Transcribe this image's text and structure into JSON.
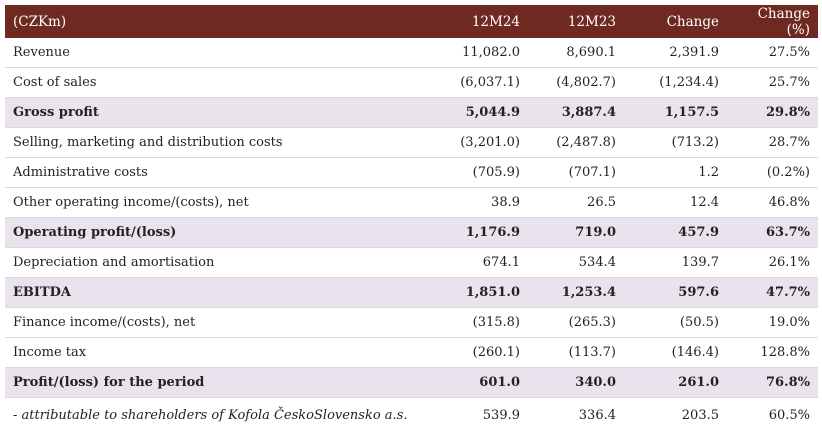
{
  "header": {
    "unit": "(CZKm)",
    "col1": "12M24",
    "col2": "12M23",
    "col3": "Change",
    "col4": "Change (%)"
  },
  "rows": [
    {
      "label": "Revenue",
      "m24": "11,082.0",
      "m23": "8,690.1",
      "change": "2,391.9",
      "pct": "27.5%",
      "bold": false
    },
    {
      "label": "Cost of sales",
      "m24": "(6,037.1)",
      "m23": "(4,802.7)",
      "change": "(1,234.4)",
      "pct": "25.7%",
      "bold": false
    },
    {
      "label": "Gross profit",
      "m24": "5,044.9",
      "m23": "3,887.4",
      "change": "1,157.5",
      "pct": "29.8%",
      "bold": true
    },
    {
      "label": "Selling, marketing and distribution costs",
      "m24": "(3,201.0)",
      "m23": "(2,487.8)",
      "change": "(713.2)",
      "pct": "28.7%",
      "bold": false
    },
    {
      "label": "Administrative costs",
      "m24": "(705.9)",
      "m23": "(707.1)",
      "change": "1.2",
      "pct": "(0.2%)",
      "bold": false
    },
    {
      "label": "Other operating income/(costs), net",
      "m24": "38.9",
      "m23": "26.5",
      "change": "12.4",
      "pct": "46.8%",
      "bold": false
    },
    {
      "label": "Operating profit/(loss)",
      "m24": "1,176.9",
      "m23": "719.0",
      "change": "457.9",
      "pct": "63.7%",
      "bold": true
    },
    {
      "label": "Depreciation and amortisation",
      "m24": "674.1",
      "m23": "534.4",
      "change": "139.7",
      "pct": "26.1%",
      "bold": false
    },
    {
      "label": "EBITDA",
      "m24": "1,851.0",
      "m23": "1,253.4",
      "change": "597.6",
      "pct": "47.7%",
      "bold": true
    },
    {
      "label": "Finance income/(costs), net",
      "m24": "(315.8)",
      "m23": "(265.3)",
      "change": "(50.5)",
      "pct": "19.0%",
      "bold": false
    },
    {
      "label": "Income tax",
      "m24": "(260.1)",
      "m23": "(113.7)",
      "change": "(146.4)",
      "pct": "128.8%",
      "bold": false
    },
    {
      "label": "Profit/(loss) for the period",
      "m24": "601.0",
      "m23": "340.0",
      "change": "261.0",
      "pct": "76.8%",
      "bold": true
    }
  ],
  "note_row": {
    "label": "- attributable to shareholders of Kofola ČeskoSlovensko a.s.",
    "m24": "539.9",
    "m23": "336.4",
    "change": "203.5",
    "pct": "60.5%"
  },
  "colors": {
    "header_bg": "#6e2a20",
    "highlight_bg": "#e9e3ee"
  }
}
